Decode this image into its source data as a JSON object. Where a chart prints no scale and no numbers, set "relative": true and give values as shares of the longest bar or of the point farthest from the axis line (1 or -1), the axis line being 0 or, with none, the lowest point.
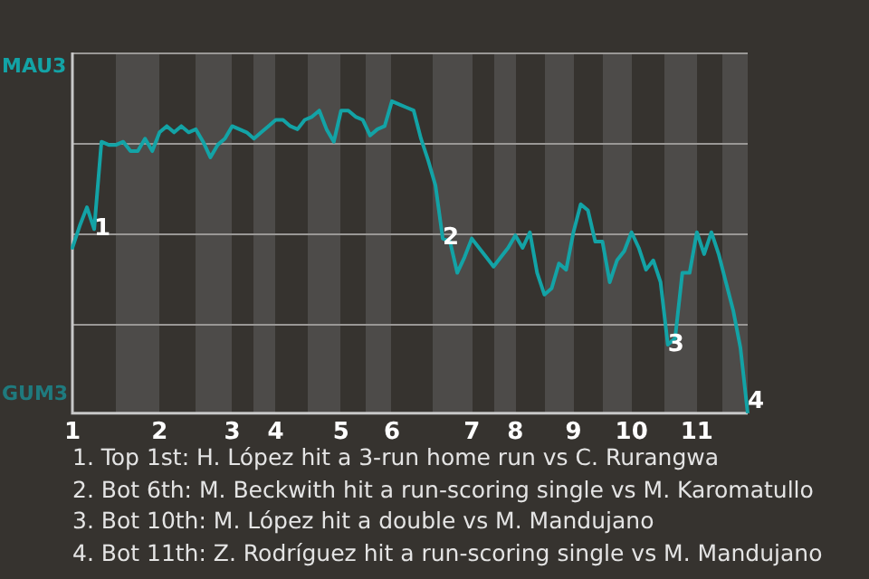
{
  "chart_data": {
    "type": "line",
    "relative": true,
    "categories": [
      "1",
      null,
      null,
      null,
      null,
      null,
      null,
      null,
      null,
      null,
      null,
      null,
      "2",
      null,
      null,
      null,
      null,
      null,
      null,
      null,
      null,
      null,
      "3",
      null,
      null,
      null,
      null,
      null,
      "4",
      null,
      null,
      null,
      null,
      null,
      null,
      null,
      null,
      "5",
      null,
      null,
      null,
      null,
      null,
      null,
      "6",
      null,
      null,
      null,
      null,
      null,
      null,
      null,
      null,
      null,
      null,
      "7",
      null,
      null,
      null,
      null,
      null,
      "8",
      null,
      null,
      null,
      null,
      null,
      null,
      null,
      "9",
      null,
      null,
      null,
      null,
      null,
      null,
      null,
      "10",
      null,
      null,
      null,
      null,
      null,
      null,
      null,
      null,
      "11",
      null,
      null,
      null,
      null,
      null,
      null,
      null
    ],
    "series": [
      {
        "color": "#13a3a6",
        "values": [
          0.53,
          0.6,
          0.66,
          0.59,
          0.87,
          0.86,
          0.86,
          0.87,
          0.84,
          0.84,
          0.88,
          0.84,
          0.9,
          0.92,
          0.9,
          0.92,
          0.9,
          0.91,
          0.87,
          0.82,
          0.86,
          0.88,
          0.92,
          0.91,
          0.9,
          0.88,
          0.9,
          0.92,
          0.94,
          0.94,
          0.92,
          0.91,
          0.94,
          0.95,
          0.97,
          0.91,
          0.87,
          0.97,
          0.97,
          0.95,
          0.94,
          0.89,
          0.91,
          0.92,
          1,
          0.99,
          0.98,
          0.97,
          0.88,
          0.81,
          0.73,
          0.56,
          0.55,
          0.45,
          0.5,
          0.56,
          0.53,
          0.5,
          0.47,
          0.5,
          0.53,
          0.57,
          0.53,
          0.58,
          0.45,
          0.38,
          0.4,
          0.48,
          0.46,
          0.58,
          0.67,
          0.65,
          0.55,
          0.55,
          0.42,
          0.49,
          0.52,
          0.58,
          0.53,
          0.46,
          0.49,
          0.42,
          0.22,
          0.24,
          0.45,
          0.45,
          0.58,
          0.51,
          0.58,
          0.51,
          0.42,
          0.33,
          0.21,
          0
        ]
      }
    ],
    "grid": "y",
    "legend": false,
    "marker": "none",
    "line_style": "solid",
    "annotations": [
      {
        "text": "1",
        "y": 0.59
      },
      {
        "text": "2",
        "y": 0.56
      },
      {
        "text": "3",
        "y": 0.22
      },
      {
        "text": "4",
        "y": 0
      },
      "MAU3",
      "GUM3",
      "1. Top 1st: H. López hit a 3-run home run vs C. Rurangwa",
      "2. Bot 6th: M. Beckwith hit a run-scoring single vs M. Karomatullo",
      "3. Bot 10th: M. López hit a double vs M. Mandujano",
      "4. Bot 11th: Z. Rodríguez hit a run-scoring single vs M. Mandujano"
    ]
  }
}
